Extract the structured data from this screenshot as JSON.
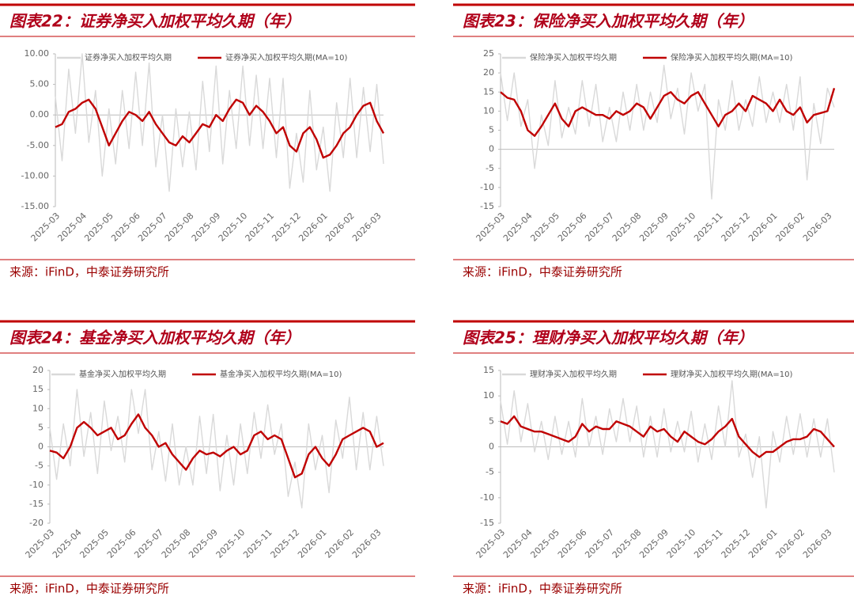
{
  "chart_data": [
    {
      "type": "line",
      "title": "图表22：证券净买入加权平均久期（年）",
      "source": "来源：iFinD，中泰证券研究所",
      "categories": [
        "2025-03",
        null,
        null,
        null,
        "2025-04",
        null,
        null,
        null,
        "2025-05",
        null,
        null,
        null,
        "2025-06",
        null,
        null,
        null,
        "2025-07",
        null,
        null,
        null,
        "2025-08",
        null,
        null,
        null,
        "2025-09",
        null,
        null,
        null,
        "2025-10",
        null,
        null,
        null,
        "2025-11",
        null,
        null,
        null,
        "2025-12",
        null,
        null,
        null,
        "2026-01",
        null,
        null,
        null,
        "2026-02",
        null,
        null,
        null,
        "2026-03",
        null
      ],
      "series": [
        {
          "name": "证券净买入加权平均久期",
          "color": "#d9d9d9",
          "values": [
            3,
            -7.5,
            7.5,
            -3,
            10,
            -4.5,
            4,
            -10,
            1,
            -8,
            4,
            -5.5,
            7,
            -5,
            8.5,
            -8.5,
            0,
            -12.5,
            1,
            -8.5,
            0.5,
            -9,
            5.5,
            -6,
            8,
            -8,
            4,
            -5.5,
            8,
            -5,
            6.5,
            -5.5,
            6,
            -7,
            6,
            -12,
            -3,
            -11,
            4,
            -9,
            -2,
            -12.5,
            2,
            -7,
            6,
            -7,
            4.5,
            -6,
            5,
            -8
          ]
        },
        {
          "name": "证券净买入加权平均久期(MA=10)",
          "color": "#c00000",
          "values": [
            -2,
            -1.5,
            0.5,
            1,
            2,
            2.5,
            1,
            -2,
            -5,
            -3,
            -1,
            0.5,
            0,
            -1,
            0.5,
            -1.5,
            -3,
            -4.5,
            -5,
            -3.5,
            -4.5,
            -3,
            -1.5,
            -2,
            0,
            -1,
            1,
            2.5,
            2,
            0,
            1.5,
            0.5,
            -1,
            -3,
            -2,
            -5,
            -6,
            -3,
            -2,
            -4,
            -7,
            -6.5,
            -5,
            -3,
            -2,
            0,
            1.5,
            2,
            -1,
            -3
          ]
        }
      ],
      "ylim": [
        -15,
        10
      ],
      "yticks": [
        {
          "value": 10,
          "label": "10.00"
        },
        {
          "value": 5,
          "label": "5.00"
        },
        {
          "value": 0,
          "label": "0.00"
        },
        {
          "value": -5,
          "label": "-5.00"
        },
        {
          "value": -10,
          "label": "-10.00"
        },
        {
          "value": -15,
          "label": "-15.00"
        }
      ]
    },
    {
      "type": "line",
      "title": "图表23：保险净买入加权平均久期（年）",
      "source": "来源：iFinD，中泰证券研究所",
      "categories": [
        "2025-03",
        null,
        null,
        null,
        "2025-04",
        null,
        null,
        null,
        "2025-05",
        null,
        null,
        null,
        "2025-06",
        null,
        null,
        null,
        "2025-07",
        null,
        null,
        null,
        "2025-08",
        null,
        null,
        null,
        "2025-09",
        null,
        null,
        null,
        "2025-10",
        null,
        null,
        null,
        "2025-11",
        null,
        null,
        null,
        "2025-12",
        null,
        null,
        null,
        "2026-01",
        null,
        null,
        null,
        "2026-02",
        null,
        null,
        null,
        "2026-03",
        null
      ],
      "series": [
        {
          "name": "保险净买入加权平均久期",
          "color": "#d9d9d9",
          "values": [
            20,
            7.5,
            20,
            6,
            13,
            -5,
            9,
            1,
            18,
            3,
            11,
            4,
            18,
            6,
            17,
            2,
            11,
            2,
            15,
            5,
            17,
            5,
            15,
            7,
            22,
            8,
            16,
            4,
            20,
            10,
            17,
            -13,
            13,
            5,
            18,
            5,
            13,
            6,
            19,
            7,
            15,
            7,
            17,
            5,
            19,
            -8,
            12,
            1.5,
            16,
            11
          ]
        },
        {
          "name": "保险净买入加权平均久期(MA=10)",
          "color": "#c00000",
          "values": [
            15,
            13.5,
            13,
            10,
            5,
            3.5,
            6,
            9,
            12,
            8,
            6,
            10,
            11,
            10,
            9,
            9,
            8,
            10,
            9,
            10,
            12,
            11,
            8,
            11,
            14,
            15,
            13,
            12,
            14,
            15,
            12,
            9,
            6,
            9,
            10,
            12,
            10,
            14,
            13,
            12,
            10,
            13,
            10,
            9,
            11,
            7,
            9,
            9.5,
            10,
            16
          ]
        }
      ],
      "ylim": [
        -15,
        25
      ],
      "yticks": [
        25,
        20,
        15,
        10,
        5,
        0,
        -5,
        -10,
        -15
      ]
    },
    {
      "type": "line",
      "title": "图表24：基金净买入加权平均久期（年）",
      "source": "来源：iFinD，中泰证券研究所",
      "categories": [
        "2025-03",
        null,
        null,
        null,
        "2025-04",
        null,
        null,
        null,
        "2025-05",
        null,
        null,
        null,
        "2025-06",
        null,
        null,
        null,
        "2025-07",
        null,
        null,
        null,
        "2025-08",
        null,
        null,
        null,
        "2025-09",
        null,
        null,
        null,
        "2025-10",
        null,
        null,
        null,
        "2025-11",
        null,
        null,
        null,
        "2025-12",
        null,
        null,
        null,
        "2026-01",
        null,
        null,
        null,
        "2026-02",
        null,
        null,
        null,
        "2026-03",
        null
      ],
      "series": [
        {
          "name": "基金净买入加权平均久期",
          "color": "#d9d9d9",
          "values": [
            5,
            -8.5,
            6,
            -5,
            15,
            -2.5,
            9,
            -7,
            12,
            -1,
            8,
            -4,
            15,
            3.5,
            15,
            -6,
            4,
            -9,
            6,
            -10,
            0,
            -10,
            8,
            -7,
            8.5,
            -11.5,
            3,
            -10,
            6,
            -7,
            9,
            -3,
            11,
            -2,
            6,
            -13,
            -4,
            -16,
            6,
            -6,
            3,
            -12,
            7,
            -3,
            13,
            -6,
            9,
            -6,
            8,
            -5
          ]
        },
        {
          "name": "基金净买入加权平均久期(MA=10)",
          "color": "#c00000",
          "values": [
            -1,
            -1.5,
            -3,
            0,
            5,
            6.5,
            5,
            3,
            4,
            5,
            2,
            3,
            6,
            8.5,
            5,
            3,
            0,
            1,
            -2,
            -4,
            -6,
            -3,
            -1,
            -2,
            -1.5,
            -2.5,
            -1,
            0,
            -2,
            -1,
            3,
            4,
            2,
            3,
            2,
            -3,
            -8,
            -7,
            -2,
            0,
            -3,
            -5,
            -2,
            2,
            3,
            4,
            5,
            4,
            0,
            1
          ]
        }
      ],
      "ylim": [
        -20,
        20
      ],
      "yticks": [
        20,
        15,
        10,
        5,
        0,
        -5,
        -10,
        -15,
        -20
      ]
    },
    {
      "type": "line",
      "title": "图表25：理财净买入加权平均久期（年）",
      "source": "来源：iFinD，中泰证券研究所",
      "categories": [
        "2025-03",
        null,
        null,
        null,
        "2025-04",
        null,
        null,
        null,
        "2025-05",
        null,
        null,
        null,
        "2025-06",
        null,
        null,
        null,
        "2025-07",
        null,
        null,
        null,
        "2025-08",
        null,
        null,
        null,
        "2025-09",
        null,
        null,
        null,
        "2025-10",
        null,
        null,
        null,
        "2025-11",
        null,
        null,
        null,
        "2025-12",
        null,
        null,
        null,
        "2026-01",
        null,
        null,
        null,
        "2026-02",
        null,
        null,
        null,
        "2026-03",
        null
      ],
      "series": [
        {
          "name": "理财净买入加权平均久期",
          "color": "#d9d9d9",
          "values": [
            9,
            0.5,
            11,
            1,
            8.5,
            -1,
            5,
            -2.5,
            6,
            -1.5,
            5,
            -2,
            9.5,
            0,
            6,
            -1.5,
            7.5,
            1,
            9.5,
            1,
            8,
            -2,
            6,
            -2,
            7.5,
            -1,
            5,
            -1,
            7,
            -3,
            4.5,
            -2.5,
            8,
            0,
            13,
            -2,
            2.5,
            -6,
            2,
            -12,
            3,
            -3,
            6,
            -1.5,
            6.5,
            -2,
            5.5,
            -2,
            5.5,
            -5
          ]
        },
        {
          "name": "理财净买入加权平均久期(MA=10)",
          "color": "#c00000",
          "values": [
            5,
            4.5,
            6,
            4,
            3.5,
            3,
            3,
            2.5,
            2,
            1.5,
            1,
            2,
            4.5,
            3,
            4,
            3.5,
            3.5,
            5,
            4.5,
            4,
            3,
            2,
            4,
            3,
            3.5,
            2,
            1,
            3,
            2,
            1,
            0.5,
            1.5,
            3,
            4,
            5.5,
            2,
            0.5,
            -1,
            -2,
            -1,
            -1,
            0,
            1,
            1.5,
            1.5,
            2,
            3.5,
            3,
            1.5,
            0
          ]
        }
      ],
      "ylim": [
        -15,
        15
      ],
      "yticks": [
        15,
        10,
        5,
        0,
        -5,
        -10,
        -15
      ]
    }
  ]
}
